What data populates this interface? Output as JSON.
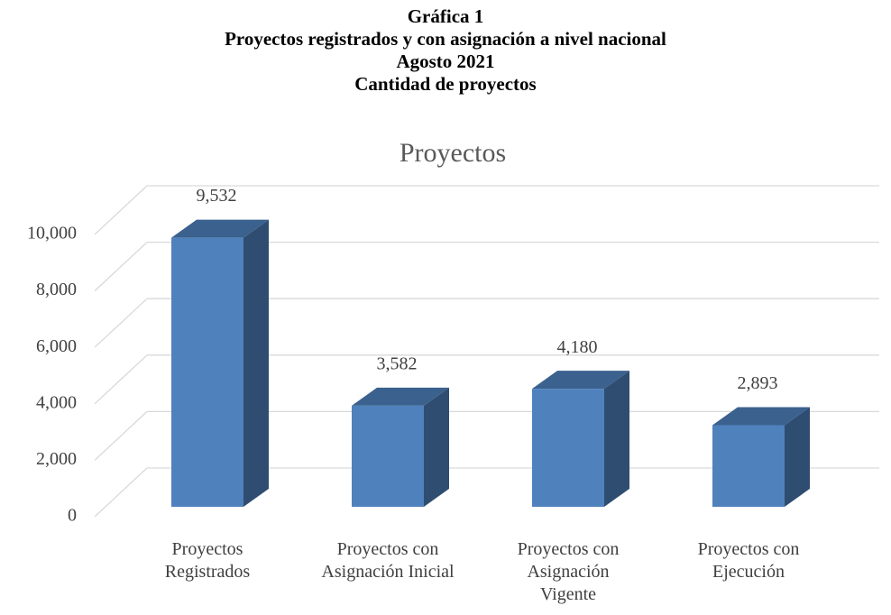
{
  "header": [
    "Gráfica 1",
    "Proyectos registrados y con asignación a nivel nacional",
    "Agosto 2021",
    "Cantidad de proyectos"
  ],
  "chart_data": {
    "type": "bar3d",
    "title": "Proyectos",
    "categories": [
      "Proyectos\nRegistrados",
      "Proyectos con\nAsignación Inicial",
      "Proyectos con\nAsignación\nVigente",
      "Proyectos con\nEjecución"
    ],
    "values": [
      9532,
      3582,
      4180,
      2893
    ],
    "value_labels": [
      "9,532",
      "3,582",
      "4,180",
      "2,893"
    ],
    "color": "#4f81bd",
    "ylim": [
      0,
      10000
    ],
    "yticks": [
      0,
      {
        "value": 2000,
        "label": "2,000"
      },
      {
        "value": 4000,
        "label": "4,000"
      },
      {
        "value": 6000,
        "label": "6,000"
      },
      {
        "value": 8000,
        "label": "8,000"
      },
      {
        "value": 10000,
        "label": "10,000"
      }
    ],
    "grid": true
  }
}
